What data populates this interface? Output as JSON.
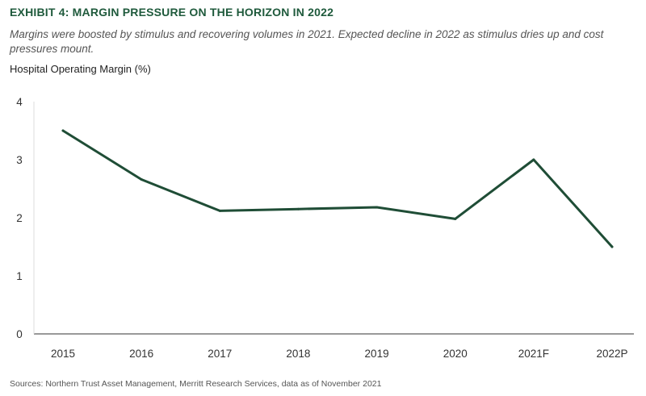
{
  "header": {
    "title": "EXHIBIT 4: MARGIN PRESSURE ON THE HORIZON IN 2022",
    "subtitle": "Margins were boosted by stimulus and recovering volumes in 2021. Expected decline in 2022 as stimulus dries up and cost pressures mount.",
    "y_axis_title": "Hospital Operating Margin (%)"
  },
  "footer": {
    "source": "Sources: Northern Trust Asset Management, Merritt Research Services, data as of November 2021"
  },
  "colors": {
    "title": "#1f5a3c",
    "line": "#1f4d36",
    "axis": "#333333"
  },
  "chart_data": {
    "type": "line",
    "title": "EXHIBIT 4: MARGIN PRESSURE ON THE HORIZON IN 2022",
    "ylabel": "Hospital Operating Margin (%)",
    "xlabel": "",
    "categories": [
      "2015",
      "2016",
      "2017",
      "2018",
      "2019",
      "2020",
      "2021F",
      "2022P"
    ],
    "series": [
      {
        "values": [
          3.5,
          2.66,
          2.12,
          2.15,
          2.18,
          1.98,
          3.0,
          1.5
        ]
      }
    ],
    "ylim": [
      0,
      4
    ],
    "yticks": [
      "0",
      "1",
      "2",
      "3",
      "4"
    ],
    "grid": false,
    "legend": "none"
  }
}
